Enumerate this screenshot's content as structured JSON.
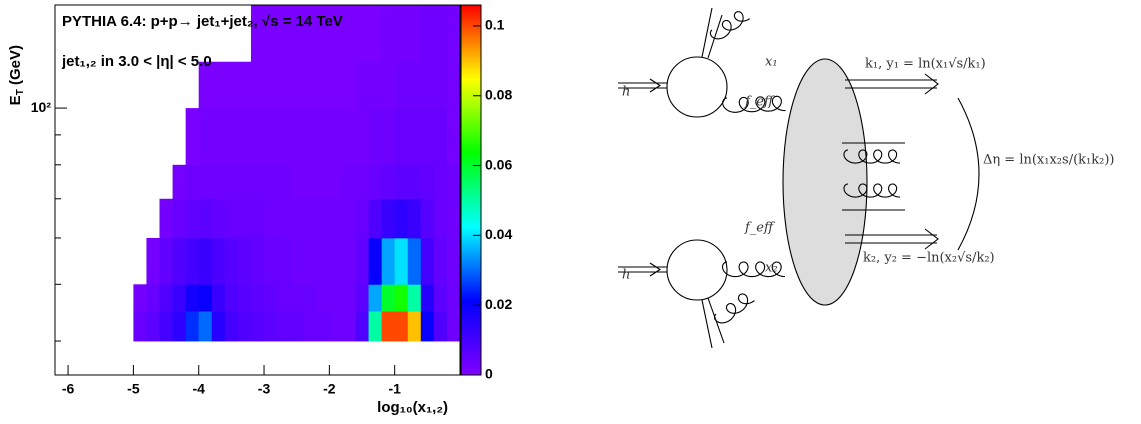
{
  "chart_data": {
    "type": "heatmap",
    "title": "PYTHIA 6.4: p+p→ jet₁+jet₂, √s = 14 TeV",
    "subtitle": "jet₁,₂ in 3.0 < |η| < 5.0",
    "x_label": "log₁₀(x₁,₂)",
    "y_label": [
      "E",
      "T",
      " (GeV)"
    ],
    "xlim": [
      -6.2,
      0
    ],
    "xticks": [
      -6,
      -5,
      -4,
      -3,
      -2,
      -1
    ],
    "ylim": [
      35,
      150
    ],
    "y_log": true,
    "yticks": [
      {
        "value": 100,
        "label": "10²"
      }
    ],
    "yminor": [
      40,
      50,
      60,
      70,
      80,
      90
    ],
    "zlim": [
      0,
      0.106
    ],
    "zticks": [
      0,
      0.02,
      0.04,
      0.06,
      0.08,
      0.1
    ],
    "colorscale": [
      "#8000ff",
      "#0000ff",
      "#00ffff",
      "#00ff00",
      "#ffff00",
      "#ff0000"
    ],
    "xbins": [
      -5,
      -4.8,
      -4.6,
      -4.4,
      -4.2,
      -4,
      -3.8,
      -3.6,
      -3.4,
      -3.2,
      -3,
      -2.8,
      -2.6,
      -2.4,
      -2.2,
      -2,
      -1.8,
      -1.6,
      -1.4,
      -1.2,
      -1,
      -0.8,
      -0.6,
      -0.4,
      -0.2,
      0
    ],
    "ybins": [
      40,
      45,
      50,
      60,
      70,
      80,
      100,
      120,
      150
    ],
    "z": [
      [
        0.004,
        0.006,
        0.01,
        0.014,
        0.025,
        0.03,
        0.015,
        0.01,
        0.008,
        0.007,
        0.006,
        0.005,
        0.005,
        0.004,
        0.004,
        0.003,
        0.003,
        0.008,
        0.05,
        0.1,
        0.1,
        0.09,
        0.02,
        0.008,
        0.003
      ],
      [
        0.002,
        0.004,
        0.008,
        0.012,
        0.018,
        0.02,
        0.012,
        0.008,
        0.007,
        0.006,
        0.005,
        0.004,
        0.004,
        0.004,
        0.003,
        0.003,
        0.003,
        0.006,
        0.035,
        0.06,
        0.065,
        0.05,
        0.015,
        0.006,
        0.003
      ],
      [
        0,
        0.002,
        0.005,
        0.008,
        0.01,
        0.012,
        0.009,
        0.007,
        0.006,
        0.005,
        0.004,
        0.004,
        0.003,
        0.003,
        0.003,
        0.003,
        0.003,
        0.005,
        0.02,
        0.035,
        0.04,
        0.03,
        0.01,
        0.005,
        0.003
      ],
      [
        0,
        0,
        0.002,
        0.004,
        0.005,
        0.006,
        0.005,
        0.004,
        0.004,
        0.004,
        0.003,
        0.003,
        0.003,
        0.003,
        0.003,
        0.003,
        0.003,
        0.004,
        0.008,
        0.012,
        0.014,
        0.012,
        0.007,
        0.004,
        0.003
      ],
      [
        0,
        0,
        0,
        0.002,
        0.003,
        0.003,
        0.003,
        0.003,
        0.003,
        0.003,
        0.003,
        0.003,
        0.002,
        0.002,
        0.002,
        0.002,
        0.003,
        0.003,
        0.004,
        0.005,
        0.006,
        0.006,
        0.005,
        0.004,
        0.003
      ],
      [
        0,
        0,
        0,
        0,
        0.001,
        0.002,
        0.002,
        0.002,
        0.002,
        0.002,
        0.002,
        0.002,
        0.002,
        0.002,
        0.002,
        0.002,
        0.002,
        0.002,
        0.003,
        0.003,
        0.004,
        0.004,
        0.004,
        0.004,
        0.002
      ],
      [
        0,
        0,
        0,
        0,
        0,
        0.001,
        0.001,
        0.001,
        0.001,
        0.001,
        0.001,
        0.001,
        0.001,
        0.001,
        0.001,
        0.001,
        0.001,
        0.002,
        0.002,
        0.002,
        0.003,
        0.003,
        0.003,
        0.003,
        0.002
      ],
      [
        0,
        0,
        0,
        0,
        0,
        0,
        0,
        0,
        0,
        0.001,
        0.001,
        0.001,
        0.001,
        0.001,
        0.001,
        0.001,
        0.001,
        0.001,
        0.001,
        0.002,
        0.002,
        0.002,
        0.003,
        0.003,
        0.002
      ]
    ]
  },
  "diagram": {
    "labels": [
      "h",
      "x₁",
      "f_eff",
      "k₁,  y₁ = ln(x₁√s/k₁)",
      "Δη = ln(x₁x₂s/(k₁k₂))",
      "f_eff",
      "x₂",
      "h",
      "k₂,  y₂ = −ln(x₂√s/k₂)"
    ]
  }
}
